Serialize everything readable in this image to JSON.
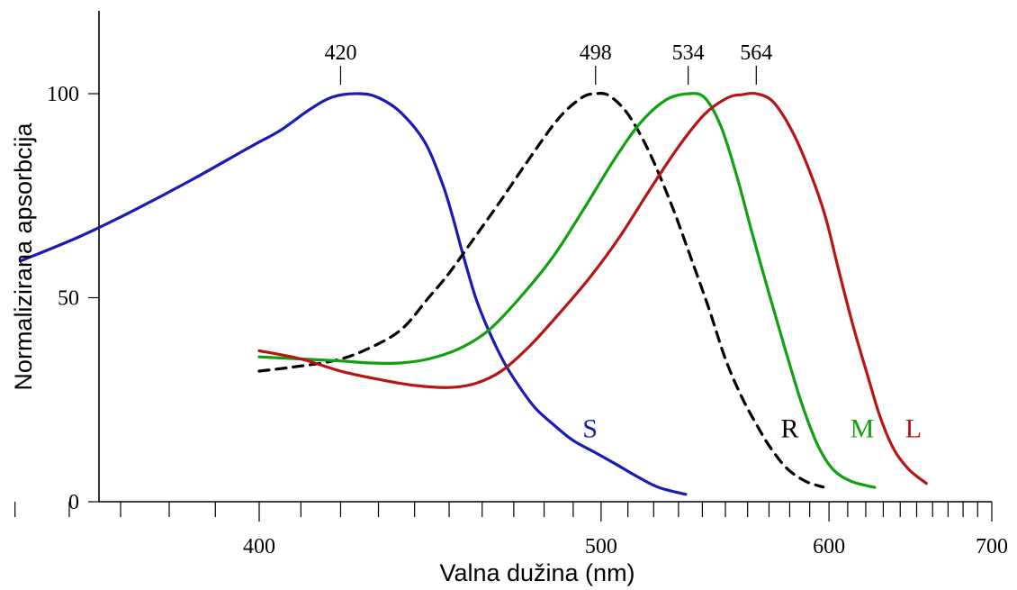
{
  "chart_data": {
    "type": "line",
    "xlabel": "Valna dužina (nm)",
    "ylabel": "Normalizirana apsorbcija",
    "x_ticks": [
      400,
      500,
      600,
      700
    ],
    "y_ticks": [
      0,
      50,
      100
    ],
    "xlim": [
      350,
      700
    ],
    "ylim": [
      0,
      120
    ],
    "x_scale": "reciprocal",
    "grid": false,
    "peak_labels": [
      "420",
      "498",
      "534",
      "564"
    ],
    "peaks": [
      420,
      498,
      534,
      564
    ],
    "series": [
      {
        "name": "S",
        "color": "#1a1ab4",
        "dash": false,
        "points": [
          [
            351,
            59
          ],
          [
            362,
            65
          ],
          [
            372,
            71
          ],
          [
            385,
            79
          ],
          [
            398,
            87
          ],
          [
            405,
            91
          ],
          [
            412,
            96
          ],
          [
            418,
            99.2
          ],
          [
            425,
            100
          ],
          [
            430,
            99
          ],
          [
            436,
            95.5
          ],
          [
            443,
            88
          ],
          [
            448,
            78
          ],
          [
            451,
            70
          ],
          [
            454,
            61
          ],
          [
            458,
            50
          ],
          [
            462,
            42
          ],
          [
            467,
            34
          ],
          [
            472,
            28
          ],
          [
            477,
            23
          ],
          [
            483,
            19
          ],
          [
            490,
            15
          ],
          [
            498,
            12
          ],
          [
            506,
            9
          ],
          [
            514,
            6
          ],
          [
            522,
            3.5
          ],
          [
            533,
            1.8
          ]
        ]
      },
      {
        "name": "R",
        "color": "#000000",
        "dash": true,
        "points": [
          [
            400,
            32
          ],
          [
            408,
            33
          ],
          [
            418,
            34.5
          ],
          [
            426,
            37
          ],
          [
            436,
            42
          ],
          [
            444,
            50
          ],
          [
            450,
            56
          ],
          [
            457,
            64
          ],
          [
            466,
            74
          ],
          [
            475,
            84
          ],
          [
            485,
            94
          ],
          [
            493,
            99
          ],
          [
            498,
            100
          ],
          [
            503,
            99.5
          ],
          [
            510,
            95
          ],
          [
            518,
            86
          ],
          [
            527,
            73
          ],
          [
            535,
            60
          ],
          [
            543,
            47
          ],
          [
            550,
            35
          ],
          [
            557,
            26
          ],
          [
            564,
            19
          ],
          [
            571,
            13
          ],
          [
            579,
            8
          ],
          [
            588,
            5
          ],
          [
            597,
            3.6
          ]
        ]
      },
      {
        "name": "M",
        "color": "#10a010",
        "dash": false,
        "points": [
          [
            400,
            35.5
          ],
          [
            410,
            35
          ],
          [
            420,
            34.5
          ],
          [
            428,
            34
          ],
          [
            436,
            34
          ],
          [
            444,
            35
          ],
          [
            453,
            37.5
          ],
          [
            462,
            42
          ],
          [
            472,
            50
          ],
          [
            483,
            60
          ],
          [
            494,
            72
          ],
          [
            505,
            84
          ],
          [
            515,
            93
          ],
          [
            525,
            98.5
          ],
          [
            534,
            100
          ],
          [
            541,
            99
          ],
          [
            548,
            92
          ],
          [
            555,
            80
          ],
          [
            562,
            66
          ],
          [
            570,
            51
          ],
          [
            578,
            37
          ],
          [
            586,
            24
          ],
          [
            594,
            14
          ],
          [
            602,
            8
          ],
          [
            612,
            5
          ],
          [
            625,
            3.5
          ]
        ]
      },
      {
        "name": "L",
        "color": "#b81414",
        "dash": false,
        "points": [
          [
            400,
            37
          ],
          [
            410,
            35
          ],
          [
            420,
            32
          ],
          [
            430,
            30
          ],
          [
            440,
            28.5
          ],
          [
            450,
            28
          ],
          [
            458,
            29
          ],
          [
            466,
            32
          ],
          [
            475,
            38
          ],
          [
            485,
            46
          ],
          [
            496,
            55
          ],
          [
            507,
            65
          ],
          [
            518,
            76
          ],
          [
            530,
            87
          ],
          [
            541,
            95
          ],
          [
            551,
            99
          ],
          [
            558,
            99.8
          ],
          [
            564,
            100
          ],
          [
            572,
            98
          ],
          [
            581,
            91
          ],
          [
            590,
            81
          ],
          [
            598,
            70
          ],
          [
            605,
            57
          ],
          [
            613,
            43
          ],
          [
            621,
            31
          ],
          [
            628,
            21
          ],
          [
            636,
            13
          ],
          [
            645,
            8
          ],
          [
            656,
            4.5
          ]
        ]
      }
    ]
  }
}
